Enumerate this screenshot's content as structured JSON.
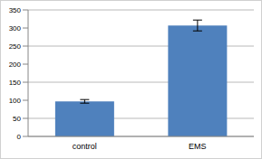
{
  "chart_data": {
    "type": "bar",
    "categories": [
      "control",
      "EMS"
    ],
    "values": [
      97,
      307
    ],
    "errors": [
      5,
      15
    ],
    "color": "#4f81bd",
    "ylim": [
      0,
      350
    ],
    "yticks": [
      0,
      50,
      100,
      150,
      200,
      250,
      300,
      350
    ],
    "grid": true
  }
}
